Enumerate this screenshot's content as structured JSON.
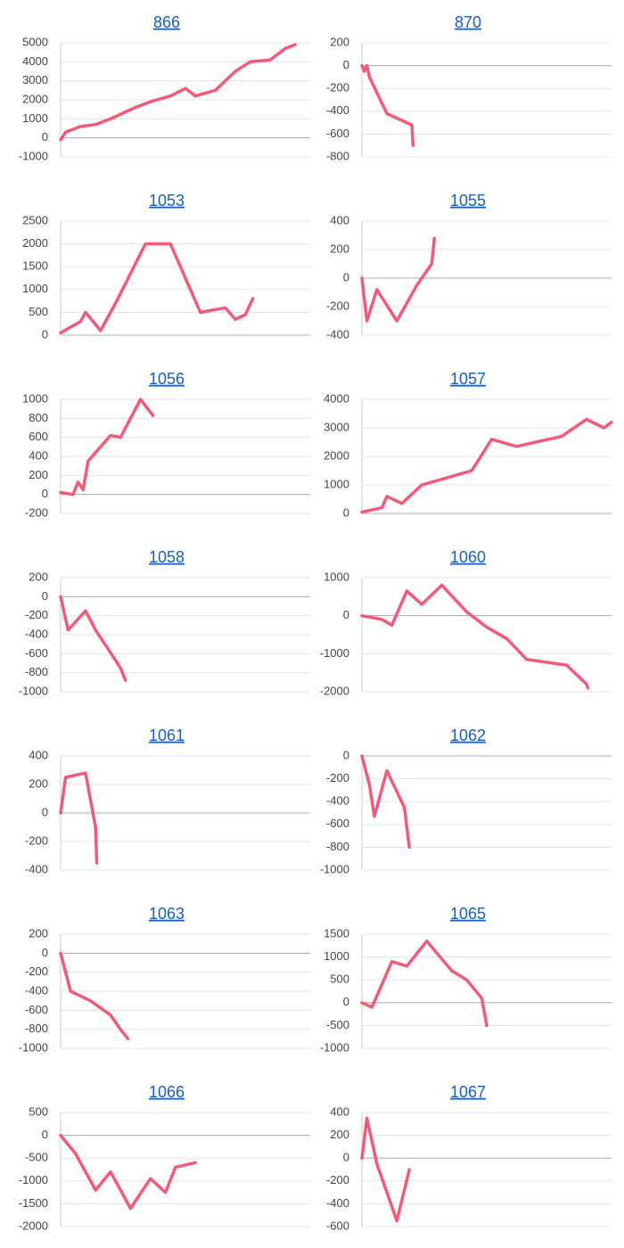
{
  "chart_data": [
    {
      "type": "line",
      "title": "866",
      "ylim": [
        -1000,
        5000
      ],
      "yticks": [
        -1000,
        0,
        1000,
        2000,
        3000,
        4000,
        5000
      ],
      "xlim": [
        0,
        100
      ],
      "color": "#ef5b78",
      "grid": true,
      "x": [
        0,
        2,
        8,
        14,
        20,
        30,
        36,
        44,
        50,
        54,
        62,
        70,
        76,
        84,
        90,
        94
      ],
      "values": [
        -100,
        300,
        600,
        700,
        1000,
        1600,
        1900,
        2200,
        2600,
        2200,
        2500,
        3500,
        4000,
        4100,
        4700,
        4900
      ]
    },
    {
      "type": "line",
      "title": "870",
      "ylim": [
        -800,
        200
      ],
      "yticks": [
        -800,
        -600,
        -400,
        -200,
        0,
        200
      ],
      "xlim": [
        0,
        100
      ],
      "color": "#ef5b78",
      "grid": true,
      "x": [
        0,
        1,
        2,
        3,
        10,
        18,
        20,
        20.5
      ],
      "values": [
        0,
        -50,
        0,
        -100,
        -420,
        -500,
        -520,
        -700
      ]
    },
    {
      "type": "line",
      "title": "1053",
      "ylim": [
        0,
        2500
      ],
      "yticks": [
        0,
        500,
        1000,
        1500,
        2000,
        2500
      ],
      "xlim": [
        0,
        100
      ],
      "color": "#ef5b78",
      "grid": true,
      "x": [
        0,
        8,
        10,
        16,
        22,
        34,
        44,
        56,
        66,
        70,
        74,
        77
      ],
      "values": [
        50,
        300,
        500,
        100,
        700,
        2000,
        2000,
        500,
        600,
        350,
        450,
        800
      ]
    },
    {
      "type": "line",
      "title": "1055",
      "ylim": [
        -400,
        400
      ],
      "yticks": [
        -400,
        -200,
        0,
        200,
        400
      ],
      "xlim": [
        0,
        100
      ],
      "color": "#ef5b78",
      "grid": true,
      "x": [
        0,
        2,
        6,
        14,
        22,
        28,
        29
      ],
      "values": [
        0,
        -300,
        -80,
        -300,
        -50,
        100,
        280
      ]
    },
    {
      "type": "line",
      "title": "1056",
      "ylim": [
        -200,
        1000
      ],
      "yticks": [
        -200,
        0,
        200,
        400,
        600,
        800,
        1000
      ],
      "xlim": [
        0,
        100
      ],
      "color": "#ef5b78",
      "grid": true,
      "x": [
        0,
        5,
        7,
        9,
        11,
        20,
        24,
        32,
        37
      ],
      "values": [
        20,
        0,
        130,
        50,
        350,
        620,
        600,
        1000,
        830
      ]
    },
    {
      "type": "line",
      "title": "1057",
      "ylim": [
        0,
        4000
      ],
      "yticks": [
        0,
        1000,
        2000,
        3000,
        4000
      ],
      "xlim": [
        0,
        100
      ],
      "color": "#ef5b78",
      "grid": true,
      "x": [
        0,
        8,
        10,
        16,
        24,
        44,
        52,
        62,
        80,
        90,
        97,
        100
      ],
      "values": [
        50,
        200,
        600,
        350,
        1000,
        1500,
        2600,
        2350,
        2700,
        3300,
        3000,
        3200
      ]
    },
    {
      "type": "line",
      "title": "1058",
      "ylim": [
        -1000,
        200
      ],
      "yticks": [
        -1000,
        -800,
        -600,
        -400,
        -200,
        0,
        200
      ],
      "xlim": [
        0,
        100
      ],
      "color": "#ef5b78",
      "grid": true,
      "x": [
        0,
        3,
        10,
        14,
        24,
        26
      ],
      "values": [
        0,
        -350,
        -150,
        -350,
        -750,
        -880
      ]
    },
    {
      "type": "line",
      "title": "1060",
      "ylim": [
        -2000,
        1000
      ],
      "yticks": [
        -2000,
        -1000,
        0,
        1000
      ],
      "xlim": [
        0,
        100
      ],
      "color": "#ef5b78",
      "grid": true,
      "x": [
        0,
        8,
        12,
        18,
        24,
        32,
        42,
        50,
        58,
        66,
        82,
        90,
        90.5
      ],
      "values": [
        0,
        -100,
        -250,
        650,
        300,
        800,
        100,
        -300,
        -600,
        -1150,
        -1300,
        -1800,
        -1900
      ]
    },
    {
      "type": "line",
      "title": "1061",
      "ylim": [
        -400,
        400
      ],
      "yticks": [
        -400,
        -200,
        0,
        200,
        400
      ],
      "xlim": [
        0,
        100
      ],
      "color": "#ef5b78",
      "grid": true,
      "x": [
        0,
        2,
        10,
        14,
        14.5
      ],
      "values": [
        0,
        250,
        280,
        -100,
        -350
      ]
    },
    {
      "type": "line",
      "title": "1062",
      "ylim": [
        -1000,
        0
      ],
      "yticks": [
        -1000,
        -800,
        -600,
        -400,
        -200,
        0
      ],
      "xlim": [
        0,
        100
      ],
      "color": "#ef5b78",
      "grid": true,
      "x": [
        0,
        3,
        5,
        10,
        17,
        19
      ],
      "values": [
        0,
        -250,
        -530,
        -130,
        -450,
        -800
      ]
    },
    {
      "type": "line",
      "title": "1063",
      "ylim": [
        -1000,
        200
      ],
      "yticks": [
        -1000,
        -800,
        -600,
        -400,
        -200,
        0,
        200
      ],
      "xlim": [
        0,
        100
      ],
      "color": "#ef5b78",
      "grid": true,
      "x": [
        0,
        4,
        12,
        20,
        24,
        27
      ],
      "values": [
        0,
        -400,
        -500,
        -650,
        -800,
        -900
      ]
    },
    {
      "type": "line",
      "title": "1065",
      "ylim": [
        -1000,
        1500
      ],
      "yticks": [
        -1000,
        -500,
        0,
        500,
        1000,
        1500
      ],
      "xlim": [
        0,
        100
      ],
      "color": "#ef5b78",
      "grid": true,
      "x": [
        0,
        4,
        12,
        18,
        26,
        36,
        42,
        48,
        50
      ],
      "values": [
        0,
        -100,
        900,
        800,
        1350,
        700,
        500,
        100,
        -500
      ]
    },
    {
      "type": "line",
      "title": "1066",
      "ylim": [
        -2000,
        500
      ],
      "yticks": [
        -2000,
        -1500,
        -1000,
        -500,
        0,
        500
      ],
      "xlim": [
        0,
        100
      ],
      "color": "#ef5b78",
      "grid": true,
      "x": [
        0,
        6,
        14,
        20,
        28,
        36,
        42,
        46,
        54
      ],
      "values": [
        0,
        -400,
        -1200,
        -800,
        -1600,
        -950,
        -1250,
        -700,
        -600
      ]
    },
    {
      "type": "line",
      "title": "1067",
      "ylim": [
        -600,
        400
      ],
      "yticks": [
        -600,
        -400,
        -200,
        0,
        200,
        400
      ],
      "xlim": [
        0,
        100
      ],
      "color": "#ef5b78",
      "grid": true,
      "x": [
        0,
        2,
        6,
        10,
        14,
        19
      ],
      "values": [
        0,
        350,
        -50,
        -300,
        -550,
        -100
      ]
    }
  ]
}
